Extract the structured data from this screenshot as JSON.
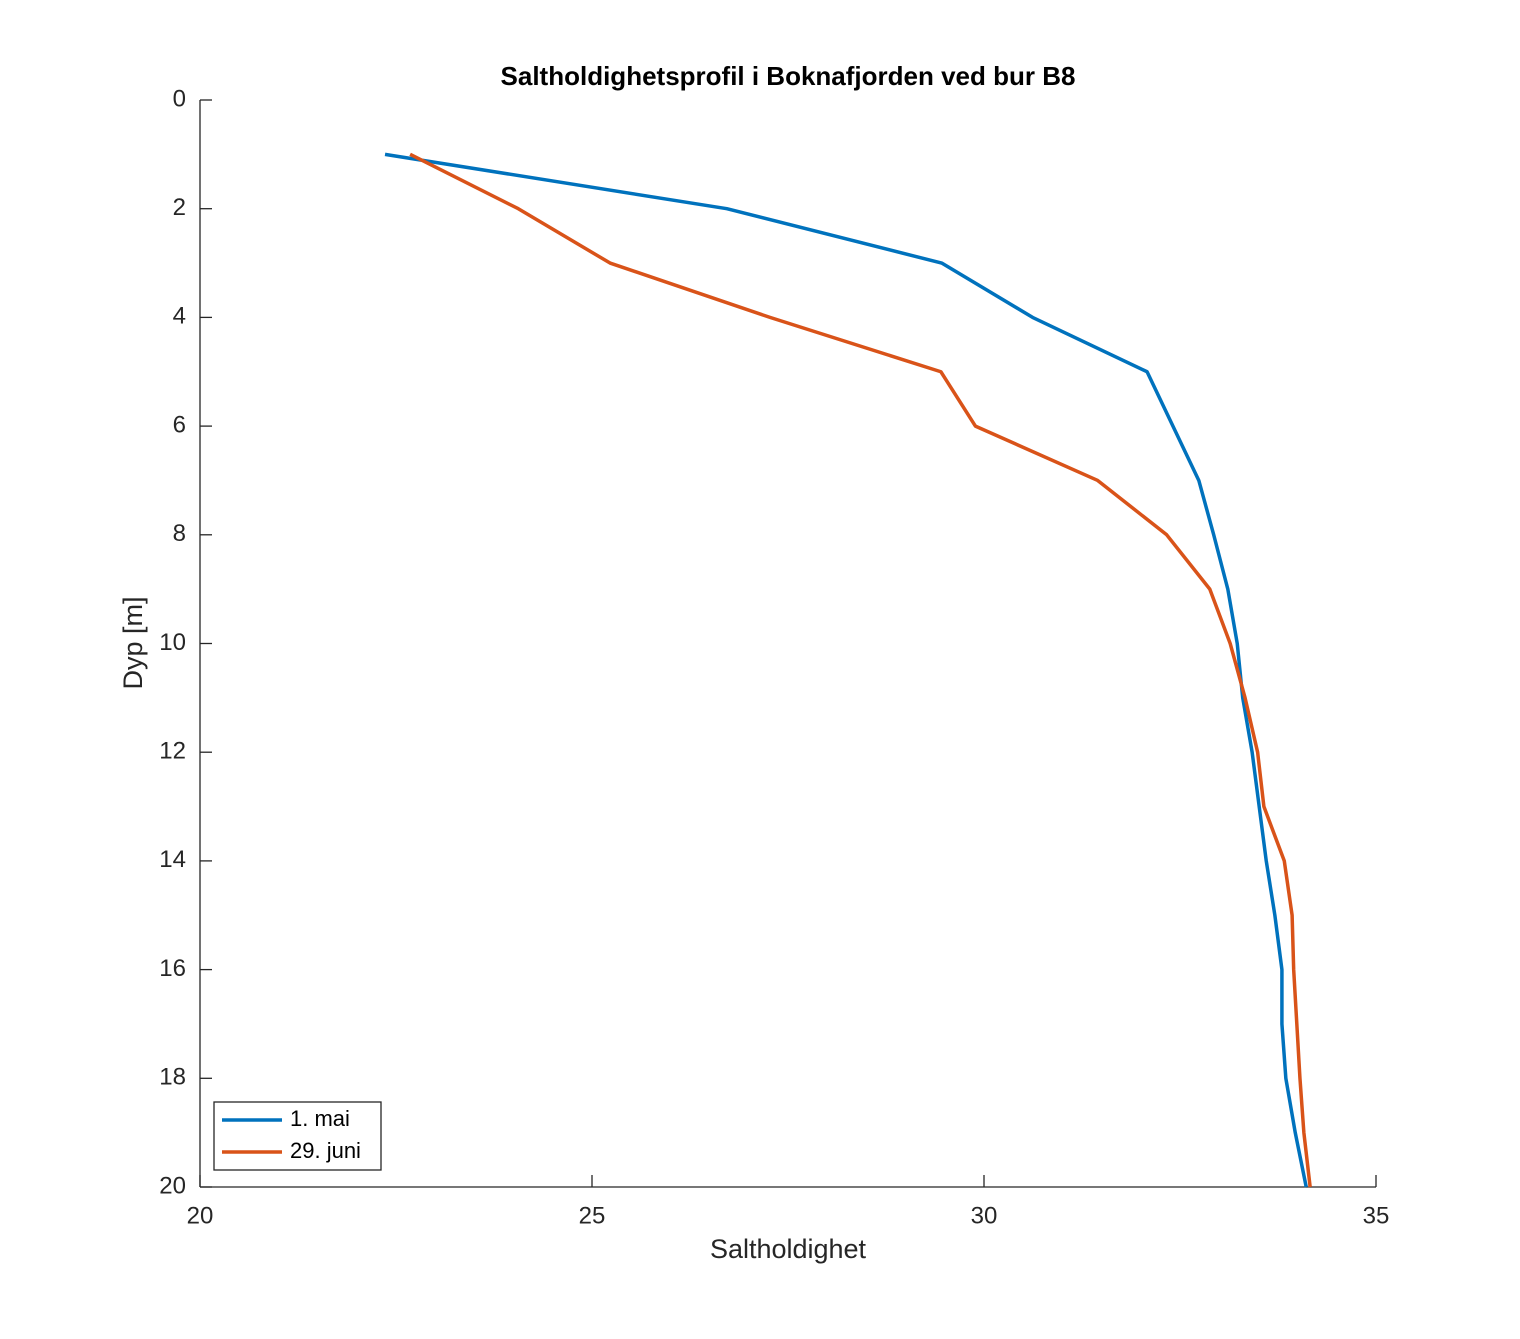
{
  "chart_data": {
    "type": "line",
    "title": "Saltholdighetsprofil i Boknafjorden ved bur B8",
    "x_label": "Saltholdighet",
    "y_label": "Dyp [m]",
    "y": [
      1,
      2,
      3,
      4,
      5,
      6,
      7,
      8,
      9,
      10,
      11,
      12,
      13,
      14,
      15,
      16,
      17,
      18,
      19,
      20
    ],
    "series": [
      {
        "name": "1. mai",
        "color": "#0072bd",
        "x": [
          22.36,
          26.72,
          29.46,
          30.62,
          32.08,
          32.41,
          32.74,
          32.93,
          33.11,
          33.23,
          33.3,
          33.42,
          33.51,
          33.6,
          33.71,
          33.8,
          33.8,
          33.85,
          33.97,
          34.11
        ]
      },
      {
        "name": "29. juni",
        "color": "#d95319",
        "x": [
          22.68,
          24.06,
          25.23,
          27.27,
          29.45,
          29.89,
          31.45,
          32.33,
          32.88,
          33.14,
          33.33,
          33.49,
          33.57,
          33.83,
          33.93,
          33.95,
          33.99,
          34.03,
          34.08,
          34.16
        ]
      }
    ],
    "xlim": [
      20,
      35
    ],
    "xticks": [
      20,
      25,
      30,
      35
    ],
    "ylim": [
      0,
      20
    ],
    "yticks": [
      0,
      2,
      4,
      6,
      8,
      10,
      12,
      14,
      16,
      18,
      20
    ],
    "y_reversed": true,
    "legend": "lower left"
  }
}
